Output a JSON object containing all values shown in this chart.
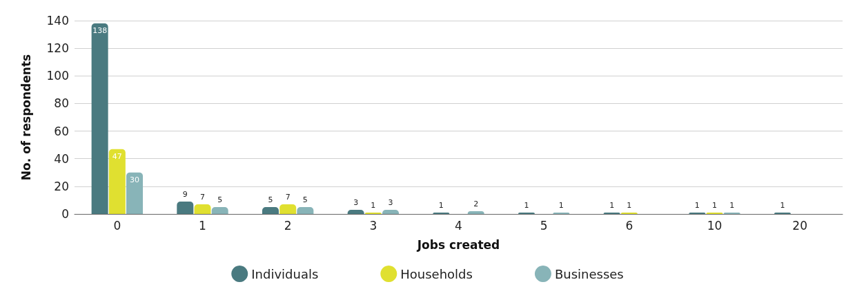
{
  "chart_data": {
    "type": "bar",
    "xlabel": "Jobs created",
    "ylabel": "No. of respondents",
    "categories": [
      "0",
      "1",
      "2",
      "3",
      "4",
      "5",
      "6",
      "10",
      "20"
    ],
    "series": [
      {
        "name": "Individuals",
        "color": "#4a7a80",
        "values": [
          138,
          9,
          5,
          3,
          1,
          1,
          1,
          1,
          1
        ]
      },
      {
        "name": "Households",
        "color": "#e0e030",
        "values": [
          47,
          7,
          7,
          1,
          null,
          null,
          1,
          1,
          null
        ]
      },
      {
        "name": "Businesses",
        "color": "#88b4b8",
        "values": [
          30,
          5,
          5,
          3,
          2,
          1,
          null,
          1,
          null
        ]
      }
    ],
    "ylim": [
      0,
      140
    ],
    "yticks": [
      0,
      20,
      40,
      60,
      80,
      100,
      120,
      140
    ],
    "grid": "y",
    "legend": "bottom",
    "data_labels": true
  }
}
